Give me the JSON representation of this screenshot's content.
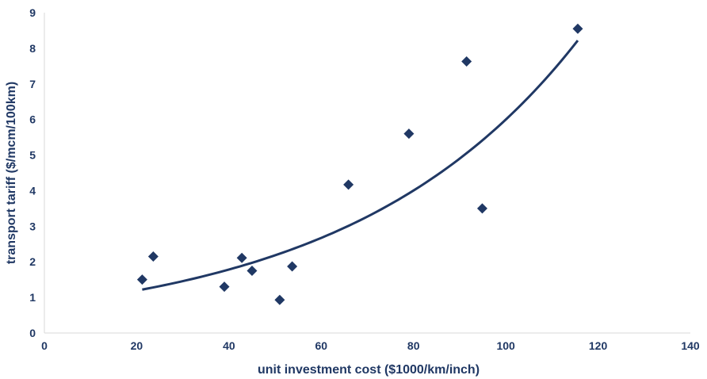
{
  "chart_data": {
    "type": "scatter",
    "title": "",
    "xlabel": "unit investment cost ($1000/km/inch)",
    "ylabel": "transport tariff ($/mcm/100km)",
    "xlim": [
      0,
      140
    ],
    "ylim": [
      0,
      9
    ],
    "xticks": [
      "0",
      "20",
      "40",
      "60",
      "80",
      "100",
      "120",
      "140"
    ],
    "yticks": [
      "0",
      "1",
      "2",
      "3",
      "4",
      "5",
      "6",
      "7",
      "8",
      "9"
    ],
    "grid": false,
    "legend": "none",
    "series": [
      {
        "marker": "diamond",
        "color": "#203864",
        "x": [
          21.2,
          23.6,
          39.0,
          42.8,
          45.0,
          51.0,
          53.7,
          65.9,
          79.0,
          91.5,
          94.9,
          115.6
        ],
        "y": [
          1.5,
          2.15,
          1.3,
          2.11,
          1.75,
          0.93,
          1.87,
          4.17,
          5.6,
          7.63,
          3.5,
          8.55
        ]
      }
    ],
    "trendline": {
      "type": "exponential",
      "color": "#203864",
      "x_start": 21.2,
      "x_end": 115.6,
      "y_start": 1.22,
      "y_end": 8.22
    }
  }
}
